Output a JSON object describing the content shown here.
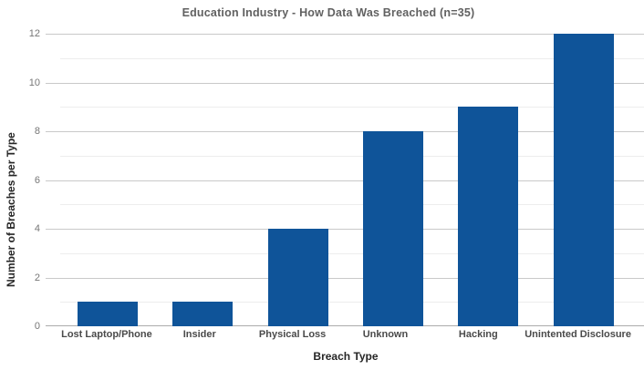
{
  "chart_data": {
    "type": "bar",
    "title": "Education Industry - How Data Was Breached (n=35)",
    "xlabel": "Breach Type",
    "ylabel": "Number of Breaches per Type",
    "categories": [
      "Lost Laptop/Phone",
      "Insider",
      "Physical Loss",
      "Unknown",
      "Hacking",
      "Unintented Disclosure"
    ],
    "values": [
      1,
      1,
      4,
      8,
      9,
      12
    ],
    "series_total_n": 35,
    "ylim": [
      0,
      12
    ],
    "yticks": [
      0,
      2,
      4,
      6,
      8,
      10,
      12
    ],
    "minor_gridlines_at": [
      1,
      3,
      5,
      7,
      9,
      11
    ],
    "legend": "none",
    "grid": "on",
    "colors": {
      "bar": "#0f5499",
      "major_grid": "#c9c9c9",
      "minor_grid": "#ededed",
      "baseline": "#ababab",
      "background": "#ffffff"
    }
  }
}
